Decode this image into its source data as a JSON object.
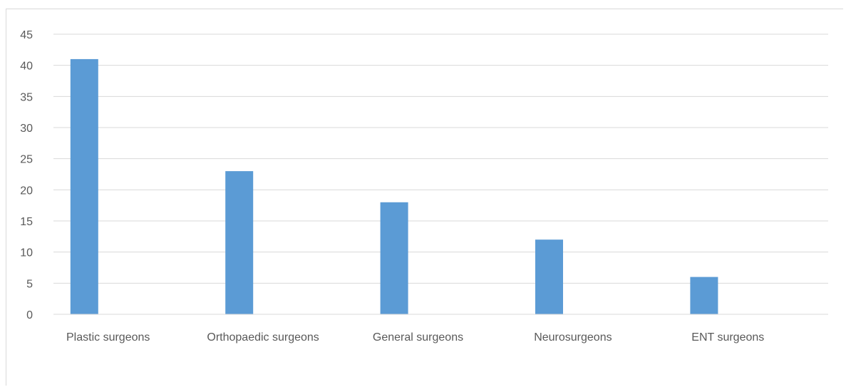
{
  "chart_data": {
    "type": "bar",
    "title": "",
    "xlabel": "",
    "ylabel": "",
    "categories": [
      "Plastic surgeons",
      "Orthopaedic surgeons",
      "General surgeons",
      "Neurosurgeons",
      "ENT surgeons"
    ],
    "values": [
      41,
      23,
      18,
      12,
      6
    ],
    "ylim": [
      0,
      45
    ],
    "yticks": [
      "0",
      "5",
      "10",
      "15",
      "20",
      "25",
      "30",
      "35",
      "40",
      "45"
    ],
    "grid": true,
    "legend": "none",
    "bar_color": "#5b9bd5",
    "grid_color": "#d9d9d9",
    "axis_color": "#d9d9d9",
    "label_color": "#595959"
  }
}
